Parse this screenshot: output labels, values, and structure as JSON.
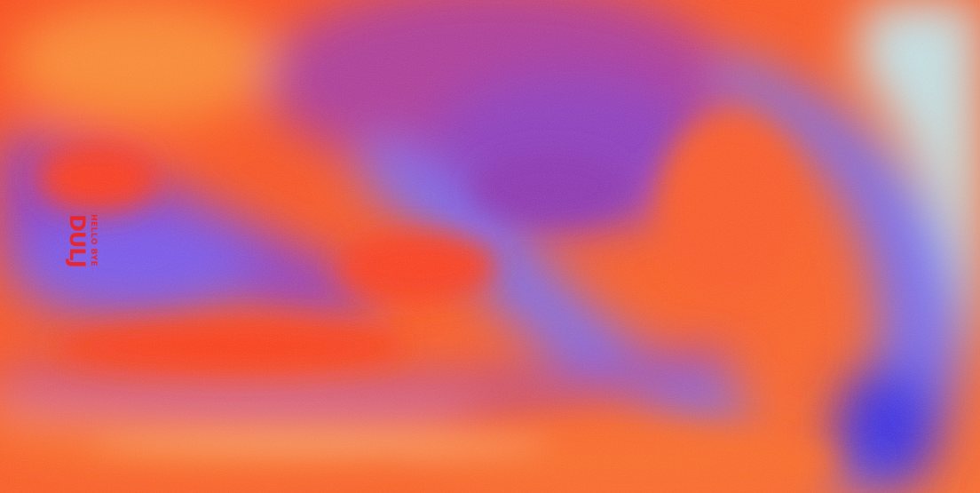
{
  "artwork": {
    "type": "abstract fluid gradient with grain",
    "colors": {
      "red_orange": "#ff3c1a",
      "orange": "#ff7a28",
      "magenta": "#c23a8f",
      "purple": "#8a3cc8",
      "violet": "#7a5cf0",
      "blue": "#3a2ee8",
      "pale_cyan": "#c8e6e8",
      "logo_red": "#e8262e"
    }
  },
  "logo": {
    "line1": "HELLO BYE",
    "line2": "DULJ"
  }
}
